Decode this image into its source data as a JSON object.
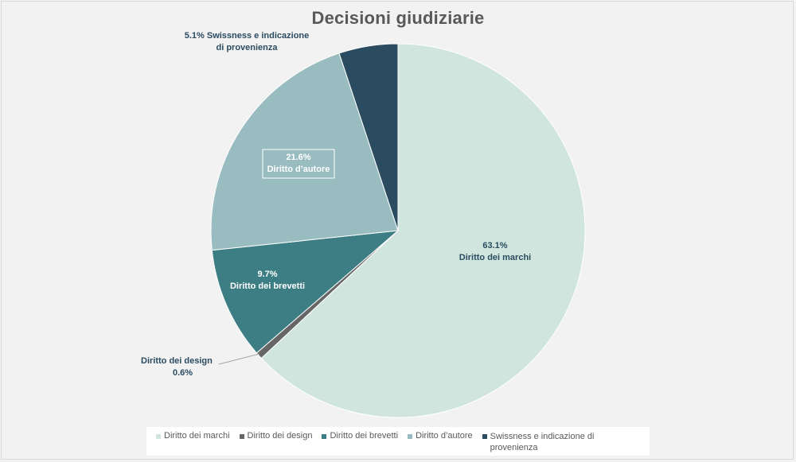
{
  "chart_data": {
    "type": "pie",
    "title": "Decisioni giudiziarie",
    "legend_position": "bottom",
    "slices": [
      {
        "label": "Diritto dei marchi",
        "value": 63.1,
        "value_label": "63.1%",
        "color": "#cfe5dd"
      },
      {
        "label": "Diritto dei design",
        "value": 0.6,
        "value_label": "0.6%",
        "color": "#666666"
      },
      {
        "label": "Diritto dei brevetti",
        "value": 9.7,
        "value_label": "9.7%",
        "color": "#3d7e85"
      },
      {
        "label": "Diritto d’autore",
        "value": 21.6,
        "value_label": "21.6%",
        "color": "#99bcc0"
      },
      {
        "label": "Swissness e indicazione di provenienza",
        "value": 5.1,
        "value_label": "5.1%",
        "color": "#2a4b60"
      }
    ]
  }
}
